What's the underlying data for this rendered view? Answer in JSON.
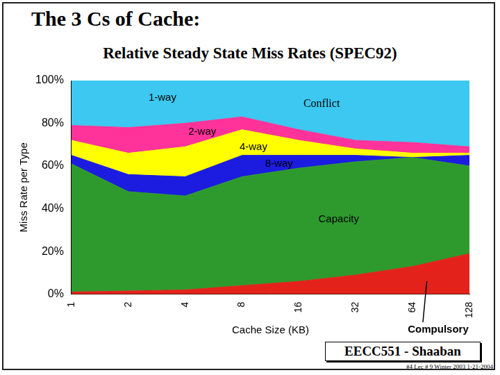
{
  "chart_data": {
    "type": "area",
    "title": "The 3 Cs of Cache:",
    "subtitle": "Relative Steady State Miss Rates (SPEC92)",
    "x_label": "Cache Size (KB)",
    "y_label": "Miss Rate per Type",
    "categories": [
      1,
      2,
      4,
      8,
      16,
      32,
      64,
      128
    ],
    "stacked": true,
    "grid": false,
    "ylim": [
      0,
      100
    ],
    "yticks": [
      {
        "value": 0,
        "label": "0%"
      },
      {
        "value": 20,
        "label": "20%"
      },
      {
        "value": 40,
        "label": "40%"
      },
      {
        "value": 60,
        "label": "60%"
      },
      {
        "value": 80,
        "label": "80%"
      },
      {
        "value": 100,
        "label": "100%"
      }
    ],
    "series": [
      {
        "name": "Compulsory",
        "color": "#e3231b",
        "values": [
          1,
          1.5,
          2,
          4,
          6,
          9,
          13,
          19
        ]
      },
      {
        "name": "Capacity",
        "color": "#2e9a2e",
        "values": [
          60,
          46.5,
          44,
          51,
          53,
          53,
          51,
          41
        ]
      },
      {
        "name": "8-way",
        "color": "#1c1ce0",
        "values": [
          4,
          8,
          9,
          10,
          6,
          3,
          0,
          5
        ]
      },
      {
        "name": "4-way",
        "color": "#ffff00",
        "values": [
          7,
          10,
          14,
          12,
          7,
          3,
          2,
          1
        ]
      },
      {
        "name": "2-way",
        "color": "#ff3399",
        "values": [
          7,
          12,
          11,
          6,
          5,
          4,
          5,
          3
        ]
      },
      {
        "name": "1-way",
        "color": "#3cc8f0",
        "values": [
          21,
          22,
          20,
          17,
          23,
          28,
          29,
          31
        ]
      }
    ],
    "annotations": [
      "Conflict"
    ]
  },
  "footer": [
    "EECC551 - Shaaban",
    "#4 Lec # 9 Winter 2003 1-21-2004"
  ]
}
